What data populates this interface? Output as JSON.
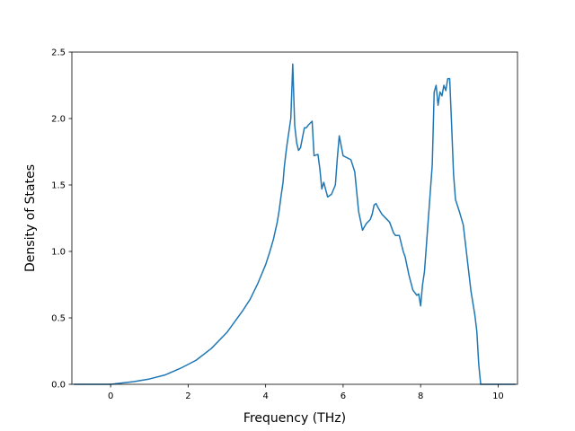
{
  "chart_data": {
    "type": "line",
    "title": "",
    "xlabel": "Frequency (THz)",
    "ylabel": "Density of States",
    "xlim": [
      -1.0,
      10.5
    ],
    "ylim": [
      0.0,
      2.5
    ],
    "xticks": [
      0,
      2,
      4,
      6,
      8,
      10
    ],
    "xtick_labels": [
      "0",
      "2",
      "4",
      "6",
      "8",
      "10"
    ],
    "yticks": [
      0.0,
      0.5,
      1.0,
      1.5,
      2.0,
      2.5
    ],
    "ytick_labels": [
      "0.0",
      "0.5",
      "1.0",
      "1.5",
      "2.0",
      "2.5"
    ],
    "grid": false,
    "legend": "none",
    "color": "#1f77b4",
    "series": [
      {
        "x": [
          -0.95,
          0.0,
          0.3,
          0.6,
          1.0,
          1.4,
          1.8,
          2.2,
          2.6,
          3.0,
          3.4,
          3.6,
          3.8,
          4.0,
          4.1,
          4.2,
          4.3,
          4.35,
          4.4,
          4.45,
          4.48,
          4.52,
          4.55,
          4.6,
          4.65,
          4.7,
          4.75,
          4.8,
          4.85,
          4.9,
          5.0,
          5.05,
          5.1,
          5.2,
          5.25,
          5.35,
          5.4,
          5.45,
          5.5,
          5.6,
          5.7,
          5.8,
          5.85,
          5.9,
          6.0,
          6.2,
          6.3,
          6.35,
          6.4,
          6.5,
          6.6,
          6.7,
          6.75,
          6.8,
          6.85,
          6.9,
          7.0,
          7.2,
          7.3,
          7.35,
          7.45,
          7.55,
          7.6,
          7.7,
          7.8,
          7.9,
          7.95,
          8.0,
          8.05,
          8.1,
          8.2,
          8.3,
          8.35,
          8.4,
          8.45,
          8.5,
          8.55,
          8.6,
          8.65,
          8.7,
          8.75,
          8.8,
          8.85,
          8.9,
          9.0,
          9.1,
          9.2,
          9.3,
          9.4,
          9.45,
          9.5,
          9.55,
          9.6,
          10.45
        ],
        "y": [
          0.0,
          0.0,
          0.01,
          0.02,
          0.04,
          0.07,
          0.12,
          0.18,
          0.27,
          0.39,
          0.55,
          0.64,
          0.76,
          0.9,
          0.99,
          1.09,
          1.22,
          1.31,
          1.42,
          1.52,
          1.63,
          1.73,
          1.8,
          1.9,
          2.0,
          2.41,
          1.95,
          1.82,
          1.76,
          1.78,
          1.93,
          1.93,
          1.95,
          1.98,
          1.72,
          1.73,
          1.62,
          1.47,
          1.52,
          1.41,
          1.43,
          1.5,
          1.7,
          1.87,
          1.72,
          1.69,
          1.6,
          1.45,
          1.3,
          1.16,
          1.21,
          1.24,
          1.28,
          1.35,
          1.36,
          1.33,
          1.28,
          1.22,
          1.14,
          1.12,
          1.12,
          1.0,
          0.96,
          0.82,
          0.71,
          0.67,
          0.68,
          0.59,
          0.75,
          0.85,
          1.25,
          1.65,
          2.2,
          2.25,
          2.1,
          2.2,
          2.17,
          2.25,
          2.21,
          2.3,
          2.3,
          1.95,
          1.58,
          1.39,
          1.3,
          1.2,
          0.95,
          0.7,
          0.52,
          0.4,
          0.15,
          0.0,
          0.0,
          0.0
        ]
      }
    ]
  }
}
